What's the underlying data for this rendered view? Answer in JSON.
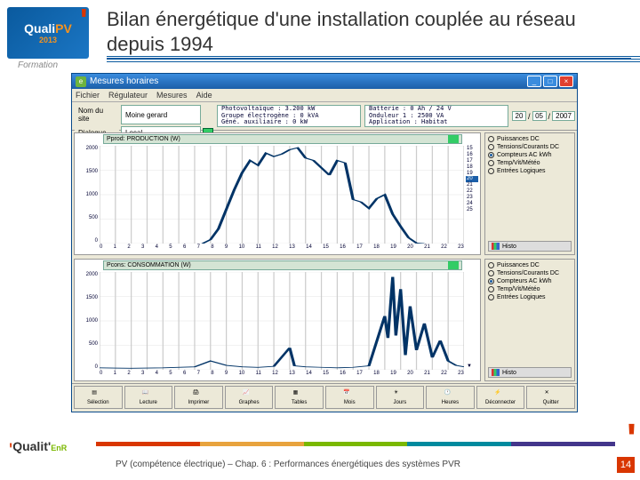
{
  "title": "Bilan énergétique d'une installation couplée au réseau depuis 1994",
  "logo": {
    "brand": "Quali",
    "sub": "PV",
    "year": "2013",
    "formation": "Formation"
  },
  "app": {
    "window_title": "Mesures horaires",
    "menus": [
      "Fichier",
      "Régulateur",
      "Mesures",
      "Aide"
    ],
    "fields": {
      "site_label": "Nom du site",
      "site_value": "Moine gerard",
      "dialog_label": "Dialogue",
      "dialog_value": "Local",
      "info1": "Photovoltaïque : 3.200 kW\nGroupe électrogène : 0 kVA\nGéné. auxiliaire : 0 kW",
      "info2": "Batterie : 0 Ah / 24 V\nOnduleur 1 : 2500 VA\nApplication : Habitat"
    },
    "date": {
      "d": "20",
      "m": "05",
      "y": "2007"
    },
    "chart1": {
      "title": "Pprod: PRODUCTION (W)",
      "ylim": [
        0,
        2000
      ],
      "yticks": [
        2000,
        1500,
        1000,
        500,
        0
      ],
      "xticks": [
        "0",
        "1",
        "2",
        "3",
        "4",
        "5",
        "6",
        "7",
        "8",
        "9",
        "10",
        "11",
        "12",
        "13",
        "14",
        "15",
        "16",
        "17",
        "18",
        "19",
        "20",
        "21",
        "22",
        "23"
      ],
      "points": [
        [
          6.5,
          0
        ],
        [
          7,
          80
        ],
        [
          7.5,
          300
        ],
        [
          8,
          700
        ],
        [
          8.5,
          1100
        ],
        [
          9,
          1450
        ],
        [
          9.5,
          1700
        ],
        [
          10,
          1600
        ],
        [
          10.5,
          1850
        ],
        [
          11,
          1780
        ],
        [
          11.5,
          1830
        ],
        [
          12,
          1920
        ],
        [
          12.5,
          1960
        ],
        [
          13,
          1750
        ],
        [
          13.5,
          1700
        ],
        [
          14,
          1550
        ],
        [
          14.5,
          1400
        ],
        [
          15,
          1700
        ],
        [
          15.5,
          1650
        ],
        [
          16,
          900
        ],
        [
          16.5,
          850
        ],
        [
          17,
          720
        ],
        [
          17.5,
          920
        ],
        [
          18,
          1000
        ],
        [
          18.5,
          600
        ],
        [
          19,
          350
        ],
        [
          19.5,
          120
        ],
        [
          20,
          10
        ],
        [
          20.5,
          0
        ]
      ],
      "line_color": "#003366",
      "days": [
        "15",
        "16",
        "17",
        "18",
        "19",
        "20",
        "21",
        "22",
        "23",
        "24",
        "25"
      ],
      "day_sel": "20"
    },
    "chart2": {
      "title": "Pcons: CONSOMMATION (W)",
      "ylim": [
        0,
        2000
      ],
      "yticks": [
        2000,
        1500,
        1000,
        500,
        0
      ],
      "points": [
        [
          0,
          40
        ],
        [
          2,
          30
        ],
        [
          4,
          40
        ],
        [
          6,
          60
        ],
        [
          7,
          180
        ],
        [
          8,
          90
        ],
        [
          9,
          60
        ],
        [
          10,
          50
        ],
        [
          11,
          70
        ],
        [
          12,
          450
        ],
        [
          12.3,
          80
        ],
        [
          13,
          60
        ],
        [
          14,
          50
        ],
        [
          15,
          40
        ],
        [
          16,
          50
        ],
        [
          17,
          80
        ],
        [
          18,
          1100
        ],
        [
          18.2,
          650
        ],
        [
          18.5,
          1900
        ],
        [
          18.7,
          700
        ],
        [
          19,
          1650
        ],
        [
          19.3,
          300
        ],
        [
          19.6,
          1300
        ],
        [
          20,
          400
        ],
        [
          20.5,
          950
        ],
        [
          21,
          250
        ],
        [
          21.5,
          600
        ],
        [
          22,
          180
        ],
        [
          22.5,
          90
        ],
        [
          23,
          60
        ]
      ],
      "line_color": "#003366"
    },
    "panel1": {
      "opts": [
        "Puissances DC",
        "Tensions/Courants DC",
        "Compteurs AC kWh",
        "Temp/Vit/Météo",
        "Entrées Logiques"
      ],
      "sel": 2,
      "histo": "Histo"
    },
    "panel2": {
      "opts": [
        "Puissances DC",
        "Tensions/Courants DC",
        "Compteurs AC kWh",
        "Temp/Vit/Météo",
        "Entrées Logiques"
      ],
      "sel": 2,
      "histo": "Histo"
    },
    "toolbar": [
      "Sélection",
      "Lecture",
      "Imprimer",
      "Graphes",
      "Tables",
      "Mois",
      "Jours",
      "Heures",
      "Déconnecter",
      "Quitter"
    ],
    "toolbar_icons": [
      "▤",
      "📖",
      "🖨",
      "📈",
      "▦",
      "📅",
      "☀",
      "🕐",
      "⚡",
      "✕"
    ]
  },
  "footer": {
    "text": "PV (compétence électrique) – Chap. 6 : Performances énergétiques des systèmes PVR",
    "page": "14",
    "colors": [
      "#d93600",
      "#e8a33d",
      "#7ab800",
      "#008a9e",
      "#43358b"
    ]
  }
}
